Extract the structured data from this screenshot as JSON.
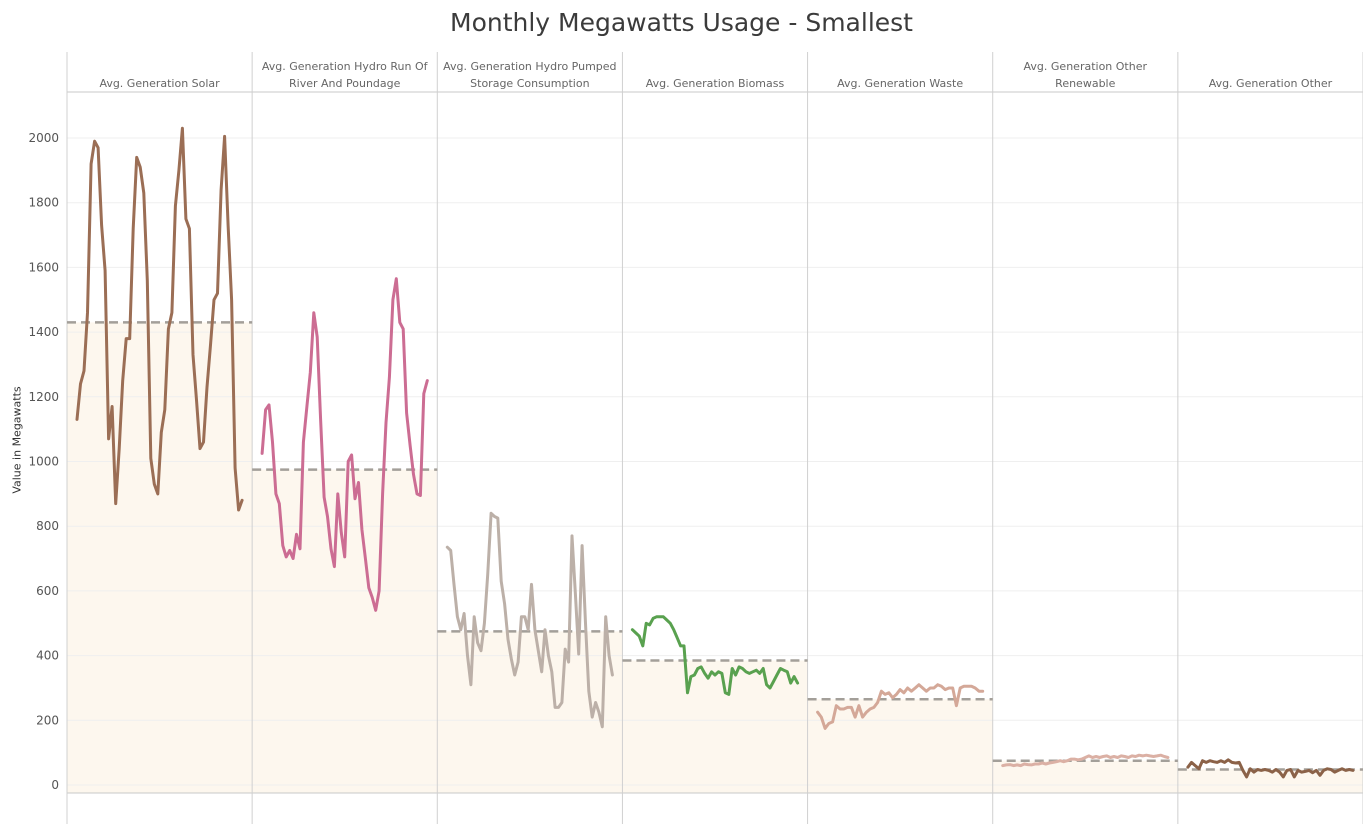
{
  "chart_data": {
    "type": "line",
    "title": "Monthly Megawatts Usage - Smallest",
    "ylabel": "Value in Megawatts",
    "xlabel": "",
    "ylim": [
      -25,
      2150
    ],
    "yticks": [
      0,
      200,
      400,
      600,
      800,
      1000,
      1200,
      1400,
      1600,
      1800,
      2000
    ],
    "grid": true,
    "reference_line": "average (dashed)",
    "band_color": "#fdf7ee",
    "reference_color": "#a39f99",
    "panels": [
      {
        "name": [
          "Avg. Generation Solar"
        ],
        "color": "#9b6e55",
        "average": 1430,
        "values": [
          1130,
          1240,
          1280,
          1460,
          1920,
          1990,
          1970,
          1730,
          1590,
          1070,
          1170,
          870,
          1040,
          1250,
          1380,
          1380,
          1720,
          1940,
          1910,
          1830,
          1560,
          1010,
          930,
          900,
          1090,
          1160,
          1410,
          1460,
          1790,
          1900,
          2030,
          1750,
          1720,
          1330,
          1190,
          1040,
          1060,
          1230,
          1360,
          1500,
          1520,
          1840,
          2005,
          1730,
          1500,
          980,
          850,
          880
        ]
      },
      {
        "name": [
          "Avg. Generation Hydro Run Of",
          "River And Poundage"
        ],
        "color": "#cc6d93",
        "average": 975,
        "values": [
          1025,
          1160,
          1175,
          1060,
          900,
          870,
          740,
          705,
          725,
          700,
          775,
          730,
          1060,
          1170,
          1275,
          1460,
          1385,
          1130,
          890,
          830,
          730,
          675,
          900,
          780,
          705,
          1000,
          1020,
          885,
          935,
          790,
          700,
          610,
          580,
          540,
          600,
          900,
          1120,
          1260,
          1500,
          1565,
          1430,
          1410,
          1150,
          1050,
          960,
          900,
          895,
          1210,
          1250
        ]
      },
      {
        "name": [
          "Avg. Generation Hydro Pumped",
          "Storage Consumption"
        ],
        "color": "#bcb0a8",
        "average": 475,
        "values": [
          735,
          725,
          620,
          520,
          480,
          530,
          400,
          310,
          520,
          440,
          415,
          500,
          650,
          840,
          830,
          825,
          630,
          560,
          450,
          390,
          340,
          380,
          520,
          520,
          480,
          620,
          480,
          415,
          350,
          480,
          400,
          350,
          240,
          240,
          255,
          420,
          380,
          770,
          590,
          405,
          740,
          500,
          290,
          210,
          255,
          225,
          180,
          520,
          400,
          340
        ]
      },
      {
        "name": [
          "Avg. Generation Biomass"
        ],
        "color": "#59a14f",
        "average": 385,
        "values": [
          480,
          470,
          460,
          430,
          500,
          495,
          515,
          520,
          520,
          520,
          510,
          500,
          480,
          455,
          430,
          430,
          285,
          335,
          340,
          360,
          365,
          345,
          330,
          350,
          340,
          350,
          345,
          285,
          280,
          360,
          340,
          365,
          360,
          350,
          345,
          350,
          355,
          345,
          360,
          310,
          300,
          320,
          340,
          360,
          355,
          350,
          315,
          335,
          315
        ]
      },
      {
        "name": [
          "Avg. Generation Waste"
        ],
        "color": "#d4a898",
        "average": 265,
        "values": [
          225,
          210,
          175,
          190,
          195,
          245,
          235,
          235,
          240,
          240,
          210,
          245,
          210,
          225,
          235,
          240,
          255,
          290,
          280,
          285,
          270,
          280,
          295,
          285,
          300,
          290,
          300,
          310,
          300,
          290,
          300,
          300,
          310,
          305,
          295,
          300,
          300,
          245,
          300,
          305,
          305,
          305,
          300,
          290,
          290
        ]
      },
      {
        "name": [
          "Avg. Generation Other",
          "Renewable"
        ],
        "color": "#dbb0a4",
        "average": 75,
        "values": [
          60,
          62,
          63,
          60,
          62,
          60,
          65,
          63,
          62,
          65,
          65,
          68,
          65,
          68,
          70,
          72,
          75,
          72,
          75,
          80,
          80,
          78,
          80,
          85,
          90,
          85,
          88,
          85,
          88,
          90,
          85,
          88,
          85,
          90,
          88,
          85,
          90,
          88,
          92,
          90,
          92,
          90,
          88,
          90,
          92,
          88,
          85
        ]
      },
      {
        "name": [
          "Avg. Generation Other"
        ],
        "color": "#8b6248",
        "average": 48,
        "values": [
          55,
          70,
          60,
          50,
          75,
          70,
          75,
          72,
          70,
          75,
          70,
          78,
          70,
          68,
          70,
          45,
          25,
          50,
          40,
          48,
          45,
          48,
          45,
          40,
          48,
          40,
          25,
          45,
          48,
          25,
          45,
          40,
          42,
          45,
          38,
          45,
          30,
          45,
          50,
          48,
          40,
          45,
          50,
          45,
          48,
          45
        ]
      }
    ]
  }
}
